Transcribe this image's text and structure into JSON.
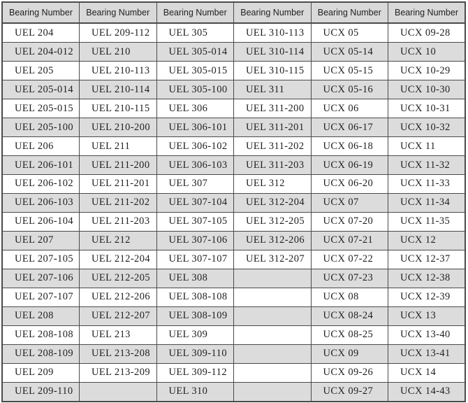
{
  "colors": {
    "border": "#4a4a4a",
    "header_bg": "#d9d9d9",
    "alt_row_bg": "#dcdcdc",
    "row_bg": "#ffffff",
    "text": "#1f1f1f"
  },
  "table": {
    "columns": [
      "Bearing Number",
      "Bearing Number",
      "Bearing Number",
      "Bearing Number",
      "Bearing Number",
      "Bearing Number"
    ],
    "rows": [
      [
        "UEL 204",
        "UEL 209-112",
        "UEL 305",
        "UEL 310-113",
        "UCX 05",
        "UCX 09-28"
      ],
      [
        "UEL 204-012",
        "UEL 210",
        "UEL 305-014",
        "UEL 310-114",
        "UCX 05-14",
        "UCX 10"
      ],
      [
        "UEL 205",
        "UEL 210-113",
        "UEL 305-015",
        "UEL 310-115",
        "UCX 05-15",
        "UCX 10-29"
      ],
      [
        "UEL 205-014",
        "UEL 210-114",
        "UEL 305-100",
        "UEL 311",
        "UCX 05-16",
        "UCX 10-30"
      ],
      [
        "UEL 205-015",
        "UEL 210-115",
        "UEL 306",
        "UEL 311-200",
        "UCX 06",
        "UCX 10-31"
      ],
      [
        "UEL 205-100",
        "UEL 210-200",
        "UEL 306-101",
        "UEL 311-201",
        "UCX 06-17",
        "UCX 10-32"
      ],
      [
        "UEL 206",
        "UEL 211",
        "UEL 306-102",
        "UEL 311-202",
        "UCX 06-18",
        "UCX 11"
      ],
      [
        "UEL 206-101",
        "UEL 211-200",
        "UEL 306-103",
        "UEL 311-203",
        "UCX 06-19",
        "UCX 11-32"
      ],
      [
        "UEL 206-102",
        "UEL 211-201",
        "UEL 307",
        "UEL 312",
        "UCX 06-20",
        "UCX 11-33"
      ],
      [
        "UEL 206-103",
        "UEL 211-202",
        "UEL 307-104",
        "UEL 312-204",
        "UCX 07",
        "UCX 11-34"
      ],
      [
        "UEL 206-104",
        "UEL 211-203",
        "UEL 307-105",
        "UEL 312-205",
        "UCX 07-20",
        "UCX 11-35"
      ],
      [
        "UEL 207",
        "UEL 212",
        "UEL 307-106",
        "UEL 312-206",
        "UCX 07-21",
        "UCX 12"
      ],
      [
        "UEL 207-105",
        "UEL 212-204",
        "UEL 307-107",
        "UEL 312-207",
        "UCX 07-22",
        "UCX 12-37"
      ],
      [
        "UEL 207-106",
        "UEL 212-205",
        "UEL 308",
        "",
        "UCX 07-23",
        "UCX 12-38"
      ],
      [
        "UEL 207-107",
        "UEL 212-206",
        "UEL 308-108",
        "",
        "UCX 08",
        "UCX 12-39"
      ],
      [
        "UEL 208",
        "UEL 212-207",
        "UEL 308-109",
        "",
        "UCX 08-24",
        "UCX 13"
      ],
      [
        "UEL 208-108",
        "UEL 213",
        "UEL 309",
        "",
        "UCX 08-25",
        "UCX 13-40"
      ],
      [
        "UEL 208-109",
        "UEL 213-208",
        "UEL 309-110",
        "",
        "UCX 09",
        "UCX 13-41"
      ],
      [
        "UEL 209",
        "UEL 213-209",
        "UEL 309-112",
        "",
        "UCX 09-26",
        "UCX 14"
      ],
      [
        "UEL 209-110",
        "",
        "UEL 310",
        "",
        "UCX 09-27",
        "UCX 14-43"
      ]
    ]
  }
}
